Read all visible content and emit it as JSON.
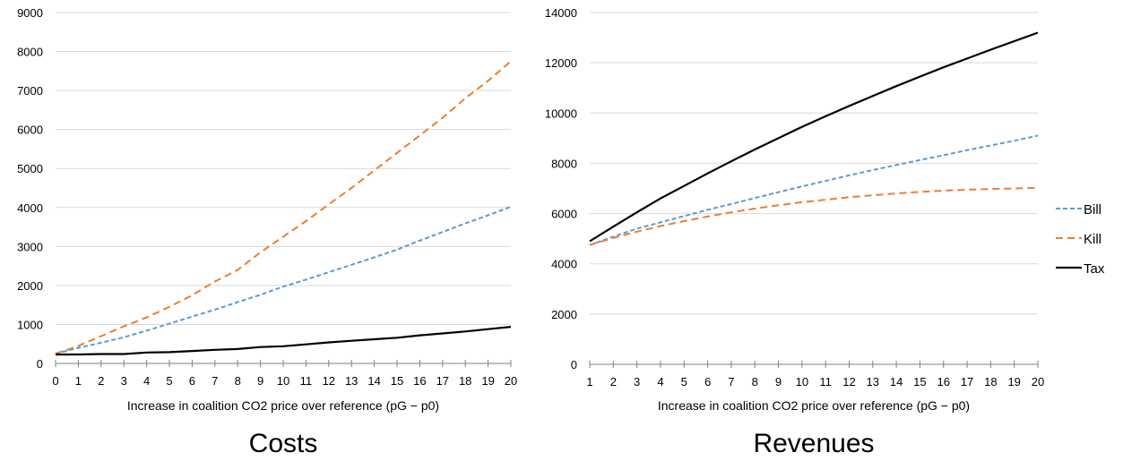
{
  "chart_data": [
    {
      "type": "line",
      "title": "Costs",
      "xlabel": "Increase in coalition CO2 price over reference (pG − p0)",
      "ylabel": "",
      "x": [
        0,
        1,
        2,
        3,
        4,
        5,
        6,
        7,
        8,
        9,
        10,
        11,
        12,
        13,
        14,
        15,
        16,
        17,
        18,
        19,
        20
      ],
      "ylim": [
        0,
        9000
      ],
      "yticks": [
        0,
        1000,
        2000,
        3000,
        4000,
        5000,
        6000,
        7000,
        8000,
        9000
      ],
      "grid": true,
      "series": [
        {
          "name": "Bill",
          "color": "#5b9bd5",
          "dash": "dashed",
          "values": [
            250,
            400,
            530,
            670,
            840,
            1020,
            1200,
            1380,
            1570,
            1760,
            1970,
            2150,
            2340,
            2530,
            2720,
            2920,
            3150,
            3370,
            3590,
            3800,
            4020
          ]
        },
        {
          "name": "Kill",
          "color": "#ed7d31",
          "dash": "dashed",
          "values": [
            250,
            450,
            700,
            950,
            1180,
            1450,
            1750,
            2100,
            2400,
            2850,
            3250,
            3650,
            4080,
            4500,
            4950,
            5400,
            5850,
            6300,
            6800,
            7250,
            7750
          ]
        },
        {
          "name": "Tax",
          "color": "#000000",
          "dash": "solid",
          "values": [
            230,
            230,
            240,
            240,
            280,
            290,
            320,
            350,
            370,
            420,
            440,
            490,
            540,
            580,
            620,
            660,
            720,
            770,
            820,
            880,
            940
          ]
        }
      ]
    },
    {
      "type": "line",
      "title": "Revenues",
      "xlabel": "Increase in coalition CO2 price over reference (pG − p0)",
      "ylabel": "",
      "x": [
        1,
        2,
        3,
        4,
        5,
        6,
        7,
        8,
        9,
        10,
        11,
        12,
        13,
        14,
        15,
        16,
        17,
        18,
        19,
        20
      ],
      "ylim": [
        0,
        14000
      ],
      "yticks": [
        0,
        2000,
        4000,
        6000,
        8000,
        10000,
        12000,
        14000
      ],
      "grid": true,
      "legend": "right",
      "series": [
        {
          "name": "Bill",
          "color": "#5b9bd5",
          "dash": "dashed",
          "values": [
            4750,
            5080,
            5400,
            5650,
            5900,
            6150,
            6380,
            6620,
            6850,
            7080,
            7300,
            7520,
            7730,
            7930,
            8130,
            8320,
            8520,
            8710,
            8900,
            9100
          ]
        },
        {
          "name": "Kill",
          "color": "#ed7d31",
          "dash": "dashed",
          "values": [
            4750,
            5030,
            5280,
            5500,
            5700,
            5880,
            6050,
            6200,
            6330,
            6450,
            6550,
            6650,
            6730,
            6800,
            6860,
            6910,
            6950,
            6980,
            7000,
            7020
          ]
        },
        {
          "name": "Tax",
          "color": "#000000",
          "dash": "solid",
          "values": [
            4900,
            5480,
            6050,
            6600,
            7100,
            7600,
            8080,
            8550,
            9000,
            9450,
            9870,
            10280,
            10680,
            11070,
            11450,
            11820,
            12170,
            12520,
            12860,
            13200
          ]
        }
      ]
    }
  ]
}
